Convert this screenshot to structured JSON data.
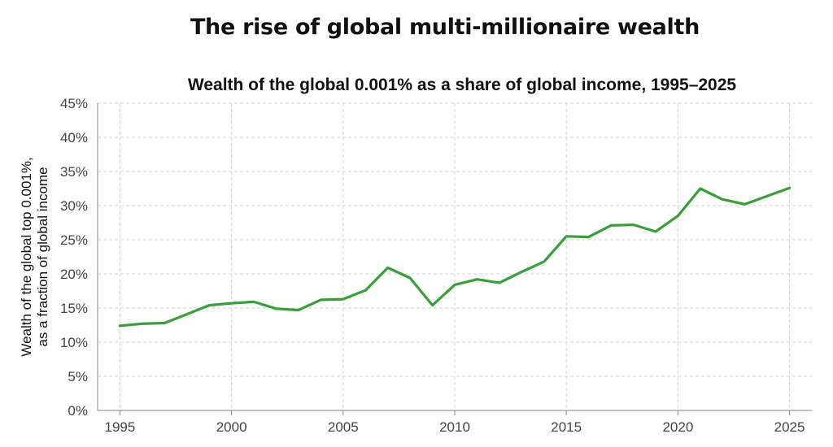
{
  "page": {
    "title": "The rise of global multi-millionaire wealth"
  },
  "chart_data": {
    "type": "line",
    "title": "Wealth of the global 0.001% as a share of global income, 1995–2025",
    "xlabel": "",
    "ylabel": "Wealth of the global top 0.001%,\nas a fraction of global income",
    "ylabel_lines": [
      "Wealth of the global top 0.001%,",
      "as a fraction of global income"
    ],
    "xlim": [
      1994,
      2026
    ],
    "ylim": [
      0,
      45
    ],
    "x_ticks": [
      1995,
      2000,
      2005,
      2010,
      2015,
      2020,
      2025
    ],
    "x_tick_labels": [
      "1995",
      "2000",
      "2005",
      "2010",
      "2015",
      "2020",
      "2025"
    ],
    "y_ticks": [
      0,
      5,
      10,
      15,
      20,
      25,
      30,
      35,
      40,
      45
    ],
    "y_tick_labels": [
      "0%",
      "5%",
      "10%",
      "15%",
      "20%",
      "25%",
      "30%",
      "35%",
      "40%",
      "45%"
    ],
    "grid": true,
    "legend": "none",
    "series": [
      {
        "color": "#3a9e3a",
        "x": [
          1995,
          1996,
          1997,
          1998,
          1999,
          2000,
          2001,
          2002,
          2003,
          2004,
          2005,
          2006,
          2007,
          2008,
          2009,
          2010,
          2011,
          2012,
          2013,
          2014,
          2015,
          2016,
          2017,
          2018,
          2019,
          2020,
          2021,
          2022,
          2023,
          2024,
          2025
        ],
        "values": [
          12.4,
          12.7,
          12.8,
          14.1,
          15.4,
          15.7,
          15.9,
          14.9,
          14.7,
          16.2,
          16.3,
          17.6,
          20.9,
          19.4,
          15.4,
          18.4,
          19.2,
          18.7,
          20.3,
          21.8,
          25.5,
          25.4,
          27.1,
          27.2,
          26.2,
          28.5,
          32.5,
          30.9,
          30.2,
          31.4,
          32.6
        ]
      }
    ]
  }
}
